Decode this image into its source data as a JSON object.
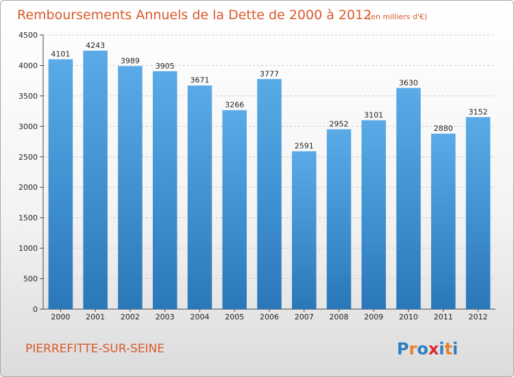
{
  "chart_data": {
    "type": "bar",
    "title": "Remboursements Annuels de la Dette de 2000 à 2012",
    "subtitle": "(en milliers d'€)",
    "categories": [
      "2000",
      "2001",
      "2002",
      "2003",
      "2004",
      "2005",
      "2006",
      "2007",
      "2008",
      "2009",
      "2010",
      "2011",
      "2012"
    ],
    "values": [
      4101,
      4243,
      3989,
      3905,
      3671,
      3266,
      3777,
      2591,
      2952,
      3101,
      3630,
      2880,
      3152
    ],
    "ylim": [
      0,
      4500
    ],
    "yticks": [
      0,
      500,
      1000,
      1500,
      2000,
      2500,
      3000,
      3500,
      4000,
      4500
    ],
    "grid": true,
    "bar_color_top": "#5aaae8",
    "bar_color_bottom": "#2a78b8"
  },
  "footer": {
    "city": "PIERREFITTE-SUR-SEINE",
    "logo_letters": [
      "P",
      "r",
      "o",
      "x",
      "i",
      "t",
      "i"
    ],
    "logo_colors": [
      "#2e7fc6",
      "#e8802c",
      "#2e7fc6",
      "#e0262e",
      "#2e7fc6",
      "#e8802c",
      "#2e7fc6"
    ]
  }
}
